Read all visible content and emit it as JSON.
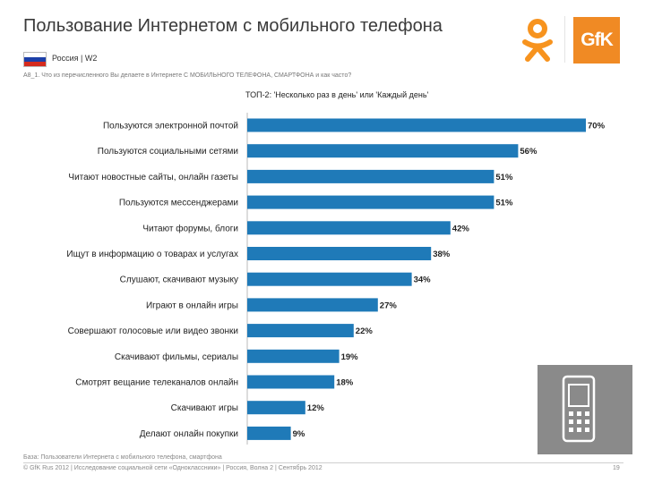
{
  "header": {
    "title": "Пользование Интернетом с мобильного телефона",
    "region": "Россия | W2",
    "question": "A8_1. Что из перечисленного Вы делаете в Интернете С МОБИЛЬНОГО ТЕЛЕФОНА, СМАРТФОНА и как часто?",
    "top_note": "ТОП-2: 'Несколько раз в день' или 'Каждый день'"
  },
  "logos": {
    "gfk_text": "GfK",
    "ok_icon": "odnoklassniki-icon",
    "phone_icon": "mobile-phone-icon"
  },
  "chart_data": {
    "type": "bar",
    "orientation": "horizontal",
    "title": "ТОП-2: 'Несколько раз в день' или 'Каждый день'",
    "categories": [
      "Пользуются электронной почтой",
      "Пользуются социальными сетями",
      "Читают новостные сайты, онлайн газеты",
      "Пользуются мессенджерами",
      "Читают форумы, блоги",
      "Ищут в информацию о товарах и услугах",
      "Слушают, скачивают музыку",
      "Играют в онлайн игры",
      "Совершают голосовые или видео звонки",
      "Скачивают фильмы, сериалы",
      "Смотрят вещание телеканалов онлайн",
      "Скачивают игры",
      "Делают онлайн покупки"
    ],
    "values": [
      70,
      56,
      51,
      51,
      42,
      38,
      34,
      27,
      22,
      19,
      18,
      12,
      9
    ],
    "value_labels": [
      "70%",
      "56%",
      "51%",
      "51%",
      "42%",
      "38%",
      "34%",
      "27%",
      "22%",
      "19%",
      "18%",
      "12%",
      "9%"
    ],
    "unit": "%",
    "xlim": [
      0,
      75
    ],
    "bar_color": "#1f7ab8"
  },
  "footer": {
    "source": "База: Пользователи Интернета с мобильного телефона, смартфона",
    "credits": "© GfK Rus 2012 | Исследование социальной сети «Одноклассники» | Россия, Волна 2 | Сентябрь 2012",
    "page_number": "19"
  },
  "colors": {
    "bar": "#1f7ab8",
    "gfk_orange": "#f08a24",
    "ok_orange": "#f7931e",
    "phone_bg": "#8a8a8a"
  }
}
